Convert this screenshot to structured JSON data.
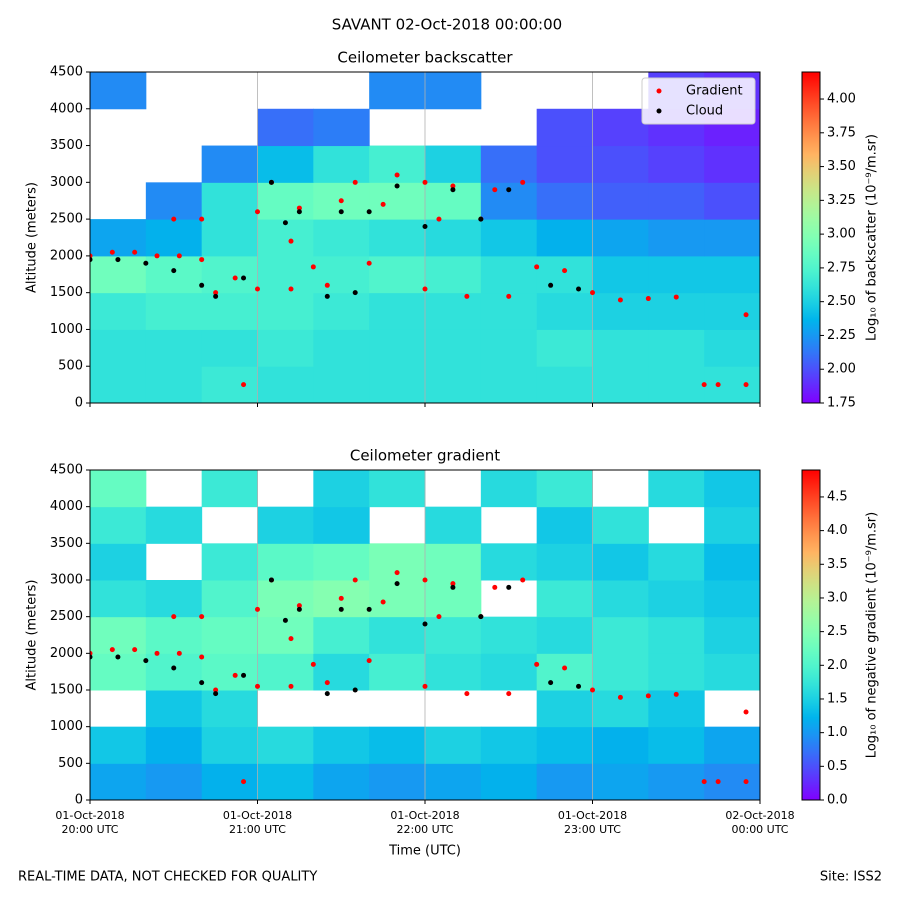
{
  "suptitle": "SAVANT 02-Oct-2018 00:00:00",
  "footer": {
    "left": "REAL-TIME DATA, NOT CHECKED FOR QUALITY",
    "right": "Site: ISS2"
  },
  "chart_data": [
    {
      "type": "heatmap",
      "title": "Ceilometer backscatter",
      "ylabel": "Altitude (meters)",
      "cmap": "rainbow",
      "clim": [
        1.75,
        4.2
      ],
      "clabel": "Log₁₀ of backscatter (10⁻⁹/m.sr)",
      "cticks": [
        1.75,
        {
          "value": 2,
          "label": "2.00"
        },
        2.25,
        {
          "value": 2.5,
          "label": "2.50"
        },
        2.75,
        {
          "value": 3,
          "label": "3.00"
        },
        3.25,
        {
          "value": 3.5,
          "label": "3.50"
        },
        3.75,
        {
          "value": 4,
          "label": "4.00"
        }
      ],
      "xlim": [
        "2018-10-01 20:00",
        "2018-10-02 00:00"
      ],
      "xticks": [
        "2018-10-01 20:00",
        "2018-10-01 21:00",
        "2018-10-01 22:00",
        "2018-10-01 23:00",
        "2018-10-02 00:00"
      ],
      "xgrid": true,
      "ylim": [
        0,
        4500
      ],
      "yticks": [
        0,
        500,
        1000,
        1500,
        2000,
        2500,
        3000,
        3500,
        4000,
        4500
      ],
      "x_edges": [
        "2018-10-01 20:00",
        "2018-10-01 20:20",
        "2018-10-01 20:40",
        "2018-10-01 21:00",
        "2018-10-01 21:20",
        "2018-10-01 21:40",
        "2018-10-01 22:00",
        "2018-10-01 22:20",
        "2018-10-01 22:40",
        "2018-10-01 23:00",
        "2018-10-01 23:20",
        "2018-10-01 23:40",
        "2018-10-02 00:00"
      ],
      "y_edges": [
        0,
        500,
        1000,
        1500,
        2000,
        2500,
        3000,
        3500,
        4000,
        4500
      ],
      "z": [
        [
          2.6,
          2.6,
          2.65,
          2.6,
          2.6,
          2.6,
          2.6,
          2.6,
          2.6,
          2.6,
          2.6,
          2.6
        ],
        [
          2.6,
          2.6,
          2.6,
          2.65,
          2.6,
          2.6,
          2.6,
          2.6,
          2.65,
          2.6,
          2.6,
          2.55
        ],
        [
          2.65,
          2.7,
          2.7,
          2.7,
          2.65,
          2.6,
          2.6,
          2.6,
          2.55,
          2.5,
          2.5,
          2.5
        ],
        [
          2.9,
          2.8,
          2.75,
          2.7,
          2.7,
          2.75,
          2.7,
          2.6,
          2.6,
          2.45,
          2.45,
          2.45
        ],
        [
          2.3,
          2.35,
          2.6,
          2.7,
          2.65,
          2.6,
          2.55,
          2.45,
          2.35,
          2.3,
          2.25,
          2.25
        ],
        [
          null,
          2.2,
          2.6,
          2.85,
          2.9,
          2.9,
          2.85,
          2.2,
          2.1,
          2.05,
          2.05,
          2.0
        ],
        [
          null,
          null,
          2.2,
          2.4,
          2.6,
          2.7,
          2.5,
          2.1,
          2.0,
          2.0,
          1.95,
          1.9
        ],
        [
          null,
          null,
          null,
          2.1,
          2.15,
          null,
          null,
          null,
          2.0,
          1.95,
          1.9,
          1.85
        ],
        [
          2.2,
          null,
          null,
          null,
          null,
          2.2,
          2.2,
          null,
          null,
          null,
          1.95,
          1.9
        ]
      ],
      "legend": "upper right",
      "series": [
        {
          "name": "Gradient",
          "color": "#ff0000",
          "x": [
            "2018-10-01 20:00",
            "2018-10-01 20:08",
            "2018-10-01 20:16",
            "2018-10-01 20:24",
            "2018-10-01 20:30",
            "2018-10-01 20:32",
            "2018-10-01 20:40",
            "2018-10-01 20:40",
            "2018-10-01 20:45",
            "2018-10-01 20:52",
            "2018-10-01 20:55",
            "2018-10-01 21:00",
            "2018-10-01 21:00",
            "2018-10-01 21:05",
            "2018-10-01 21:12",
            "2018-10-01 21:12",
            "2018-10-01 21:15",
            "2018-10-01 21:20",
            "2018-10-01 21:25",
            "2018-10-01 21:30",
            "2018-10-01 21:35",
            "2018-10-01 21:40",
            "2018-10-01 21:45",
            "2018-10-01 21:50",
            "2018-10-01 22:00",
            "2018-10-01 22:00",
            "2018-10-01 22:05",
            "2018-10-01 22:10",
            "2018-10-01 22:15",
            "2018-10-01 22:20",
            "2018-10-01 22:25",
            "2018-10-01 22:30",
            "2018-10-01 22:35",
            "2018-10-01 22:40",
            "2018-10-01 22:50",
            "2018-10-01 23:00",
            "2018-10-01 23:10",
            "2018-10-01 23:20",
            "2018-10-01 23:30",
            "2018-10-01 23:40",
            "2018-10-01 23:45",
            "2018-10-01 23:55",
            "2018-10-01 23:55"
          ],
          "y": [
            2000,
            2050,
            2050,
            2000,
            2500,
            2000,
            2500,
            1950,
            1500,
            1700,
            250,
            1550,
            2600,
            3000,
            2200,
            1550,
            2650,
            1850,
            1600,
            2750,
            3000,
            1900,
            2700,
            3100,
            1550,
            3000,
            2500,
            2950,
            1450,
            2500,
            2900,
            1450,
            3000,
            1850,
            1800,
            1500,
            1400,
            1420,
            1440,
            250,
            250,
            250,
            1200
          ]
        },
        {
          "name": "Cloud",
          "color": "#000000",
          "x": [
            "2018-10-01 20:00",
            "2018-10-01 20:10",
            "2018-10-01 20:20",
            "2018-10-01 20:30",
            "2018-10-01 20:40",
            "2018-10-01 20:45",
            "2018-10-01 20:55",
            "2018-10-01 21:05",
            "2018-10-01 21:10",
            "2018-10-01 21:15",
            "2018-10-01 21:25",
            "2018-10-01 21:30",
            "2018-10-01 21:35",
            "2018-10-01 21:40",
            "2018-10-01 21:50",
            "2018-10-01 22:00",
            "2018-10-01 22:10",
            "2018-10-01 22:20",
            "2018-10-01 22:30",
            "2018-10-01 22:45",
            "2018-10-01 22:55"
          ],
          "y": [
            1950,
            1950,
            1900,
            1800,
            1600,
            1450,
            1700,
            3000,
            2450,
            2600,
            1450,
            2600,
            1500,
            2600,
            2950,
            2400,
            2900,
            2500,
            2900,
            1600,
            1550
          ]
        }
      ]
    },
    {
      "type": "heatmap",
      "title": "Ceilometer gradient",
      "ylabel": "Altitude (meters)",
      "xlabel": "Time (UTC)",
      "cmap": "rainbow",
      "clim": [
        0,
        4.9
      ],
      "clabel": "Log₁₀ of negative gradient (10⁻⁹/m.sr)",
      "cticks": [
        {
          "value": 0,
          "label": "0.0"
        },
        0.5,
        {
          "value": 1,
          "label": "1.0"
        },
        1.5,
        {
          "value": 2,
          "label": "2.0"
        },
        2.5,
        {
          "value": 3,
          "label": "3.0"
        },
        3.5,
        {
          "value": 4,
          "label": "4.0"
        },
        4.5
      ],
      "xlim": [
        "2018-10-01 20:00",
        "2018-10-02 00:00"
      ],
      "xticks": [
        {
          "value": "2018-10-01 20:00",
          "label": "01-Oct-2018\n20:00 UTC"
        },
        {
          "value": "2018-10-01 21:00",
          "label": "01-Oct-2018\n21:00 UTC"
        },
        {
          "value": "2018-10-01 22:00",
          "label": "01-Oct-2018\n22:00 UTC"
        },
        {
          "value": "2018-10-01 23:00",
          "label": "01-Oct-2018\n23:00 UTC"
        },
        {
          "value": "2018-10-02 00:00",
          "label": "02-Oct-2018\n00:00 UTC"
        }
      ],
      "xgrid": true,
      "ylim": [
        0,
        4500
      ],
      "yticks": [
        0,
        500,
        1000,
        1500,
        2000,
        2500,
        3000,
        3500,
        4000,
        4500
      ],
      "x_edges": [
        "2018-10-01 20:00",
        "2018-10-01 20:20",
        "2018-10-01 20:40",
        "2018-10-01 21:00",
        "2018-10-01 21:20",
        "2018-10-01 21:40",
        "2018-10-01 22:00",
        "2018-10-01 22:20",
        "2018-10-01 22:40",
        "2018-10-01 23:00",
        "2018-10-01 23:20",
        "2018-10-01 23:40",
        "2018-10-02 00:00"
      ],
      "y_edges": [
        0,
        500,
        1000,
        1500,
        2000,
        2500,
        3000,
        3500,
        4000,
        4500
      ],
      "z": [
        [
          1.1,
          1.0,
          1.2,
          1.3,
          1.1,
          1.0,
          1.1,
          1.2,
          1.0,
          1.1,
          1.0,
          0.9
        ],
        [
          1.4,
          1.2,
          1.5,
          1.6,
          1.4,
          1.3,
          1.5,
          1.4,
          1.3,
          1.2,
          1.3,
          1.1
        ],
        [
          null,
          1.4,
          1.6,
          null,
          null,
          null,
          null,
          null,
          1.5,
          1.6,
          1.4,
          null
        ],
        [
          2.2,
          2.0,
          2.1,
          2.0,
          1.6,
          1.9,
          1.7,
          1.6,
          2.0,
          1.8,
          1.7,
          1.6
        ],
        [
          2.3,
          2.1,
          2.2,
          2.3,
          1.9,
          1.7,
          1.8,
          1.7,
          1.6,
          1.8,
          1.7,
          1.5
        ],
        [
          1.7,
          1.6,
          2.0,
          2.4,
          2.5,
          2.4,
          2.3,
          null,
          1.8,
          1.6,
          1.5,
          1.4
        ],
        [
          1.5,
          null,
          1.8,
          2.1,
          2.2,
          2.4,
          2.3,
          1.6,
          1.5,
          1.4,
          1.6,
          1.3
        ],
        [
          1.8,
          1.6,
          null,
          1.5,
          1.4,
          null,
          1.6,
          null,
          1.4,
          1.7,
          null,
          1.5
        ],
        [
          2.2,
          null,
          1.8,
          null,
          1.5,
          1.7,
          null,
          1.6,
          1.8,
          null,
          1.6,
          1.4
        ]
      ],
      "series": [
        {
          "color": "#ff0000",
          "x": [
            "2018-10-01 20:00",
            "2018-10-01 20:08",
            "2018-10-01 20:16",
            "2018-10-01 20:24",
            "2018-10-01 20:30",
            "2018-10-01 20:32",
            "2018-10-01 20:40",
            "2018-10-01 20:40",
            "2018-10-01 20:45",
            "2018-10-01 20:52",
            "2018-10-01 20:55",
            "2018-10-01 21:00",
            "2018-10-01 21:00",
            "2018-10-01 21:05",
            "2018-10-01 21:12",
            "2018-10-01 21:12",
            "2018-10-01 21:15",
            "2018-10-01 21:20",
            "2018-10-01 21:25",
            "2018-10-01 21:30",
            "2018-10-01 21:35",
            "2018-10-01 21:40",
            "2018-10-01 21:45",
            "2018-10-01 21:50",
            "2018-10-01 22:00",
            "2018-10-01 22:00",
            "2018-10-01 22:05",
            "2018-10-01 22:10",
            "2018-10-01 22:15",
            "2018-10-01 22:20",
            "2018-10-01 22:25",
            "2018-10-01 22:30",
            "2018-10-01 22:35",
            "2018-10-01 22:40",
            "2018-10-01 22:50",
            "2018-10-01 23:00",
            "2018-10-01 23:10",
            "2018-10-01 23:20",
            "2018-10-01 23:30",
            "2018-10-01 23:40",
            "2018-10-01 23:45",
            "2018-10-01 23:55",
            "2018-10-01 23:55"
          ],
          "y": [
            2000,
            2050,
            2050,
            2000,
            2500,
            2000,
            2500,
            1950,
            1500,
            1700,
            250,
            1550,
            2600,
            3000,
            2200,
            1550,
            2650,
            1850,
            1600,
            2750,
            3000,
            1900,
            2700,
            3100,
            1550,
            3000,
            2500,
            2950,
            1450,
            2500,
            2900,
            1450,
            3000,
            1850,
            1800,
            1500,
            1400,
            1420,
            1440,
            250,
            250,
            250,
            1200
          ]
        },
        {
          "color": "#000000",
          "x": [
            "2018-10-01 20:00",
            "2018-10-01 20:10",
            "2018-10-01 20:20",
            "2018-10-01 20:30",
            "2018-10-01 20:40",
            "2018-10-01 20:45",
            "2018-10-01 20:55",
            "2018-10-01 21:05",
            "2018-10-01 21:10",
            "2018-10-01 21:15",
            "2018-10-01 21:25",
            "2018-10-01 21:30",
            "2018-10-01 21:35",
            "2018-10-01 21:40",
            "2018-10-01 21:50",
            "2018-10-01 22:00",
            "2018-10-01 22:10",
            "2018-10-01 22:20",
            "2018-10-01 22:30",
            "2018-10-01 22:45",
            "2018-10-01 22:55"
          ],
          "y": [
            1950,
            1950,
            1900,
            1800,
            1600,
            1450,
            1700,
            3000,
            2450,
            2600,
            1450,
            2600,
            1500,
            2600,
            2950,
            2400,
            2900,
            2500,
            2900,
            1600,
            1550
          ]
        }
      ]
    }
  ]
}
